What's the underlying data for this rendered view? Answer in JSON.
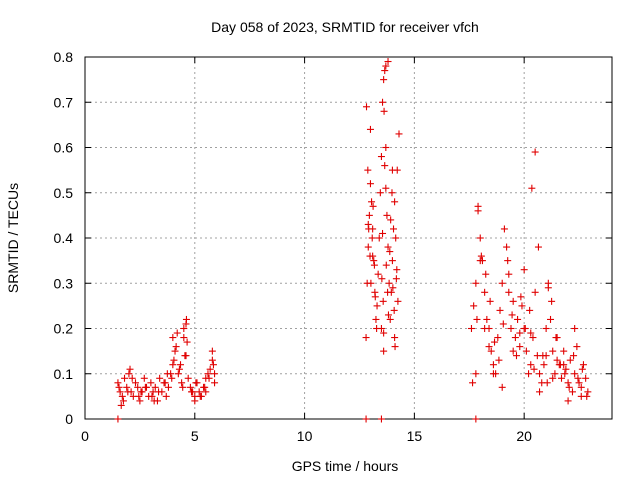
{
  "chart_data": {
    "type": "scatter",
    "title": "Day 058 of 2023, SRMTID for receiver vfch",
    "xlabel": "GPS time / hours",
    "ylabel": "SRMTID / TECUs",
    "xlim": [
      0,
      24
    ],
    "ylim": [
      0,
      0.8
    ],
    "xticks": [
      0,
      5,
      10,
      15,
      20
    ],
    "xtick_labels": [
      "0",
      "5",
      "10",
      "15",
      "20"
    ],
    "yticks": [
      0,
      0.1,
      0.2,
      0.3,
      0.4,
      0.5,
      0.6,
      0.7,
      0.8
    ],
    "ytick_labels": [
      "0",
      "0.1",
      "0.2",
      "0.3",
      "0.4",
      "0.5",
      "0.6",
      "0.7",
      "0.8"
    ],
    "grid": true,
    "series": [
      {
        "name": "SRMTID",
        "color": "#e00000",
        "marker": "plus",
        "x": [
          1.5,
          1.6,
          1.7,
          1.8,
          1.9,
          2.0,
          2.1,
          2.2,
          2.3,
          2.4,
          2.5,
          2.6,
          2.7,
          2.8,
          2.9,
          3.0,
          3.1,
          3.2,
          3.3,
          3.4,
          3.5,
          3.6,
          3.7,
          3.8,
          3.9,
          4.0,
          4.1,
          4.2,
          4.3,
          4.4,
          4.5,
          4.6,
          4.7,
          4.8,
          4.9,
          5.0,
          5.1,
          5.2,
          5.3,
          5.4,
          5.5,
          5.6,
          5.7,
          5.8,
          5.9,
          1.55,
          1.75,
          1.95,
          2.15,
          2.45,
          2.75,
          3.05,
          3.35,
          3.65,
          3.95,
          4.05,
          4.15,
          4.25,
          4.35,
          4.45,
          4.55,
          4.65,
          4.85,
          5.05,
          5.25,
          5.45,
          5.65,
          5.85,
          1.65,
          2.05,
          2.55,
          3.15,
          3.75,
          4.0,
          4.5,
          4.6,
          4.62,
          5.0,
          5.5,
          5.8,
          5.9,
          12.8,
          12.85,
          12.9,
          12.95,
          13.0,
          13.05,
          13.1,
          13.15,
          13.2,
          13.25,
          13.3,
          13.35,
          13.4,
          13.45,
          13.5,
          13.55,
          13.6,
          13.65,
          13.7,
          13.75,
          13.8,
          13.85,
          13.9,
          13.95,
          14.0,
          14.05,
          14.1,
          14.15,
          14.2,
          14.25,
          14.3,
          12.82,
          12.88,
          12.92,
          12.98,
          13.02,
          13.08,
          13.12,
          13.18,
          13.22,
          13.28,
          13.5,
          13.52,
          13.55,
          13.58,
          13.6,
          13.62,
          13.65,
          13.7,
          13.72,
          13.78,
          13.82,
          13.88,
          13.92,
          13.98,
          14.02,
          14.08,
          14.12,
          14.18,
          14.22,
          12.9,
          13.0,
          13.1,
          13.6,
          13.7,
          13.8,
          14.0,
          14.1,
          17.6,
          17.7,
          17.8,
          17.9,
          18.0,
          18.1,
          18.2,
          18.3,
          18.4,
          18.5,
          18.6,
          18.7,
          18.8,
          18.9,
          19.0,
          19.1,
          19.2,
          19.3,
          19.4,
          19.5,
          19.6,
          19.7,
          19.8,
          19.9,
          20.0,
          20.1,
          20.2,
          20.3,
          20.4,
          20.5,
          20.6,
          20.7,
          20.8,
          20.9,
          21.0,
          21.1,
          21.2,
          21.3,
          21.4,
          21.5,
          21.6,
          21.7,
          21.8,
          21.9,
          22.0,
          22.1,
          22.2,
          22.3,
          22.4,
          22.5,
          22.6,
          22.7,
          22.8,
          22.9,
          17.65,
          17.85,
          18.05,
          18.25,
          18.45,
          18.65,
          18.85,
          19.05,
          19.25,
          19.45,
          19.65,
          19.85,
          20.05,
          20.25,
          20.45,
          20.65,
          20.85,
          21.05,
          21.25,
          21.45,
          21.65,
          21.85,
          22.05,
          22.25,
          22.45,
          22.65,
          22.85,
          17.8,
          17.9,
          18.0,
          18.2,
          18.4,
          18.6,
          19.0,
          19.3,
          19.5,
          19.8,
          20.0,
          20.3,
          20.35,
          20.5,
          20.7,
          21.0,
          21.1,
          21.3,
          21.5,
          21.8,
          22.0,
          22.3,
          22.6,
          1.5,
          12.8,
          13.5,
          17.8
        ],
        "y": [
          0.08,
          0.06,
          0.05,
          0.09,
          0.07,
          0.1,
          0.06,
          0.05,
          0.08,
          0.07,
          0.04,
          0.06,
          0.09,
          0.07,
          0.05,
          0.08,
          0.06,
          0.07,
          0.04,
          0.09,
          0.06,
          0.08,
          0.05,
          0.07,
          0.1,
          0.12,
          0.15,
          0.19,
          0.11,
          0.08,
          0.18,
          0.21,
          0.09,
          0.07,
          0.06,
          0.05,
          0.08,
          0.06,
          0.05,
          0.07,
          0.09,
          0.1,
          0.11,
          0.13,
          0.08,
          0.07,
          0.04,
          0.06,
          0.09,
          0.05,
          0.07,
          0.05,
          0.06,
          0.08,
          0.09,
          0.13,
          0.16,
          0.1,
          0.12,
          0.07,
          0.14,
          0.17,
          0.06,
          0.08,
          0.05,
          0.07,
          0.09,
          0.12,
          0.03,
          0.11,
          0.06,
          0.04,
          0.1,
          0.18,
          0.2,
          0.14,
          0.22,
          0.04,
          0.06,
          0.15,
          0.1,
          0.18,
          0.3,
          0.38,
          0.45,
          0.52,
          0.48,
          0.42,
          0.35,
          0.28,
          0.22,
          0.25,
          0.32,
          0.4,
          0.5,
          0.58,
          0.7,
          0.75,
          0.77,
          0.6,
          0.45,
          0.38,
          0.3,
          0.22,
          0.28,
          0.35,
          0.42,
          0.48,
          0.4,
          0.33,
          0.26,
          0.63,
          0.69,
          0.55,
          0.42,
          0.36,
          0.3,
          0.4,
          0.47,
          0.34,
          0.27,
          0.2,
          0.2,
          0.31,
          0.41,
          0.26,
          0.19,
          0.68,
          0.56,
          0.51,
          0.34,
          0.28,
          0.23,
          0.37,
          0.44,
          0.5,
          0.29,
          0.24,
          0.16,
          0.31,
          0.55,
          0.43,
          0.64,
          0.36,
          0.15,
          0.78,
          0.79,
          0.55,
          0.18,
          0.2,
          0.25,
          0.3,
          0.47,
          0.4,
          0.35,
          0.28,
          0.22,
          0.2,
          0.15,
          0.12,
          0.1,
          0.18,
          0.24,
          0.3,
          0.42,
          0.38,
          0.28,
          0.2,
          0.15,
          0.18,
          0.22,
          0.19,
          0.25,
          0.33,
          0.15,
          0.1,
          0.12,
          0.18,
          0.28,
          0.14,
          0.1,
          0.08,
          0.12,
          0.2,
          0.3,
          0.22,
          0.15,
          0.1,
          0.13,
          0.12,
          0.09,
          0.15,
          0.11,
          0.08,
          0.13,
          0.06,
          0.1,
          0.16,
          0.08,
          0.07,
          0.12,
          0.09,
          0.06,
          0.08,
          0.22,
          0.36,
          0.32,
          0.26,
          0.17,
          0.13,
          0.21,
          0.35,
          0.23,
          0.14,
          0.27,
          0.2,
          0.24,
          0.11,
          0.38,
          0.14,
          0.08,
          0.26,
          0.18,
          0.12,
          0.1,
          0.07,
          0.14,
          0.09,
          0.11,
          0.05,
          0.1,
          0.46,
          0.35,
          0.2,
          0.16,
          0.1,
          0.07,
          0.32,
          0.26,
          0.16,
          0.2,
          0.19,
          0.51,
          0.59,
          0.06,
          0.14,
          0.29,
          0.09,
          0.18,
          0.12,
          0.04,
          0.2,
          0.05,
          0,
          0,
          0,
          0
        ]
      }
    ]
  }
}
